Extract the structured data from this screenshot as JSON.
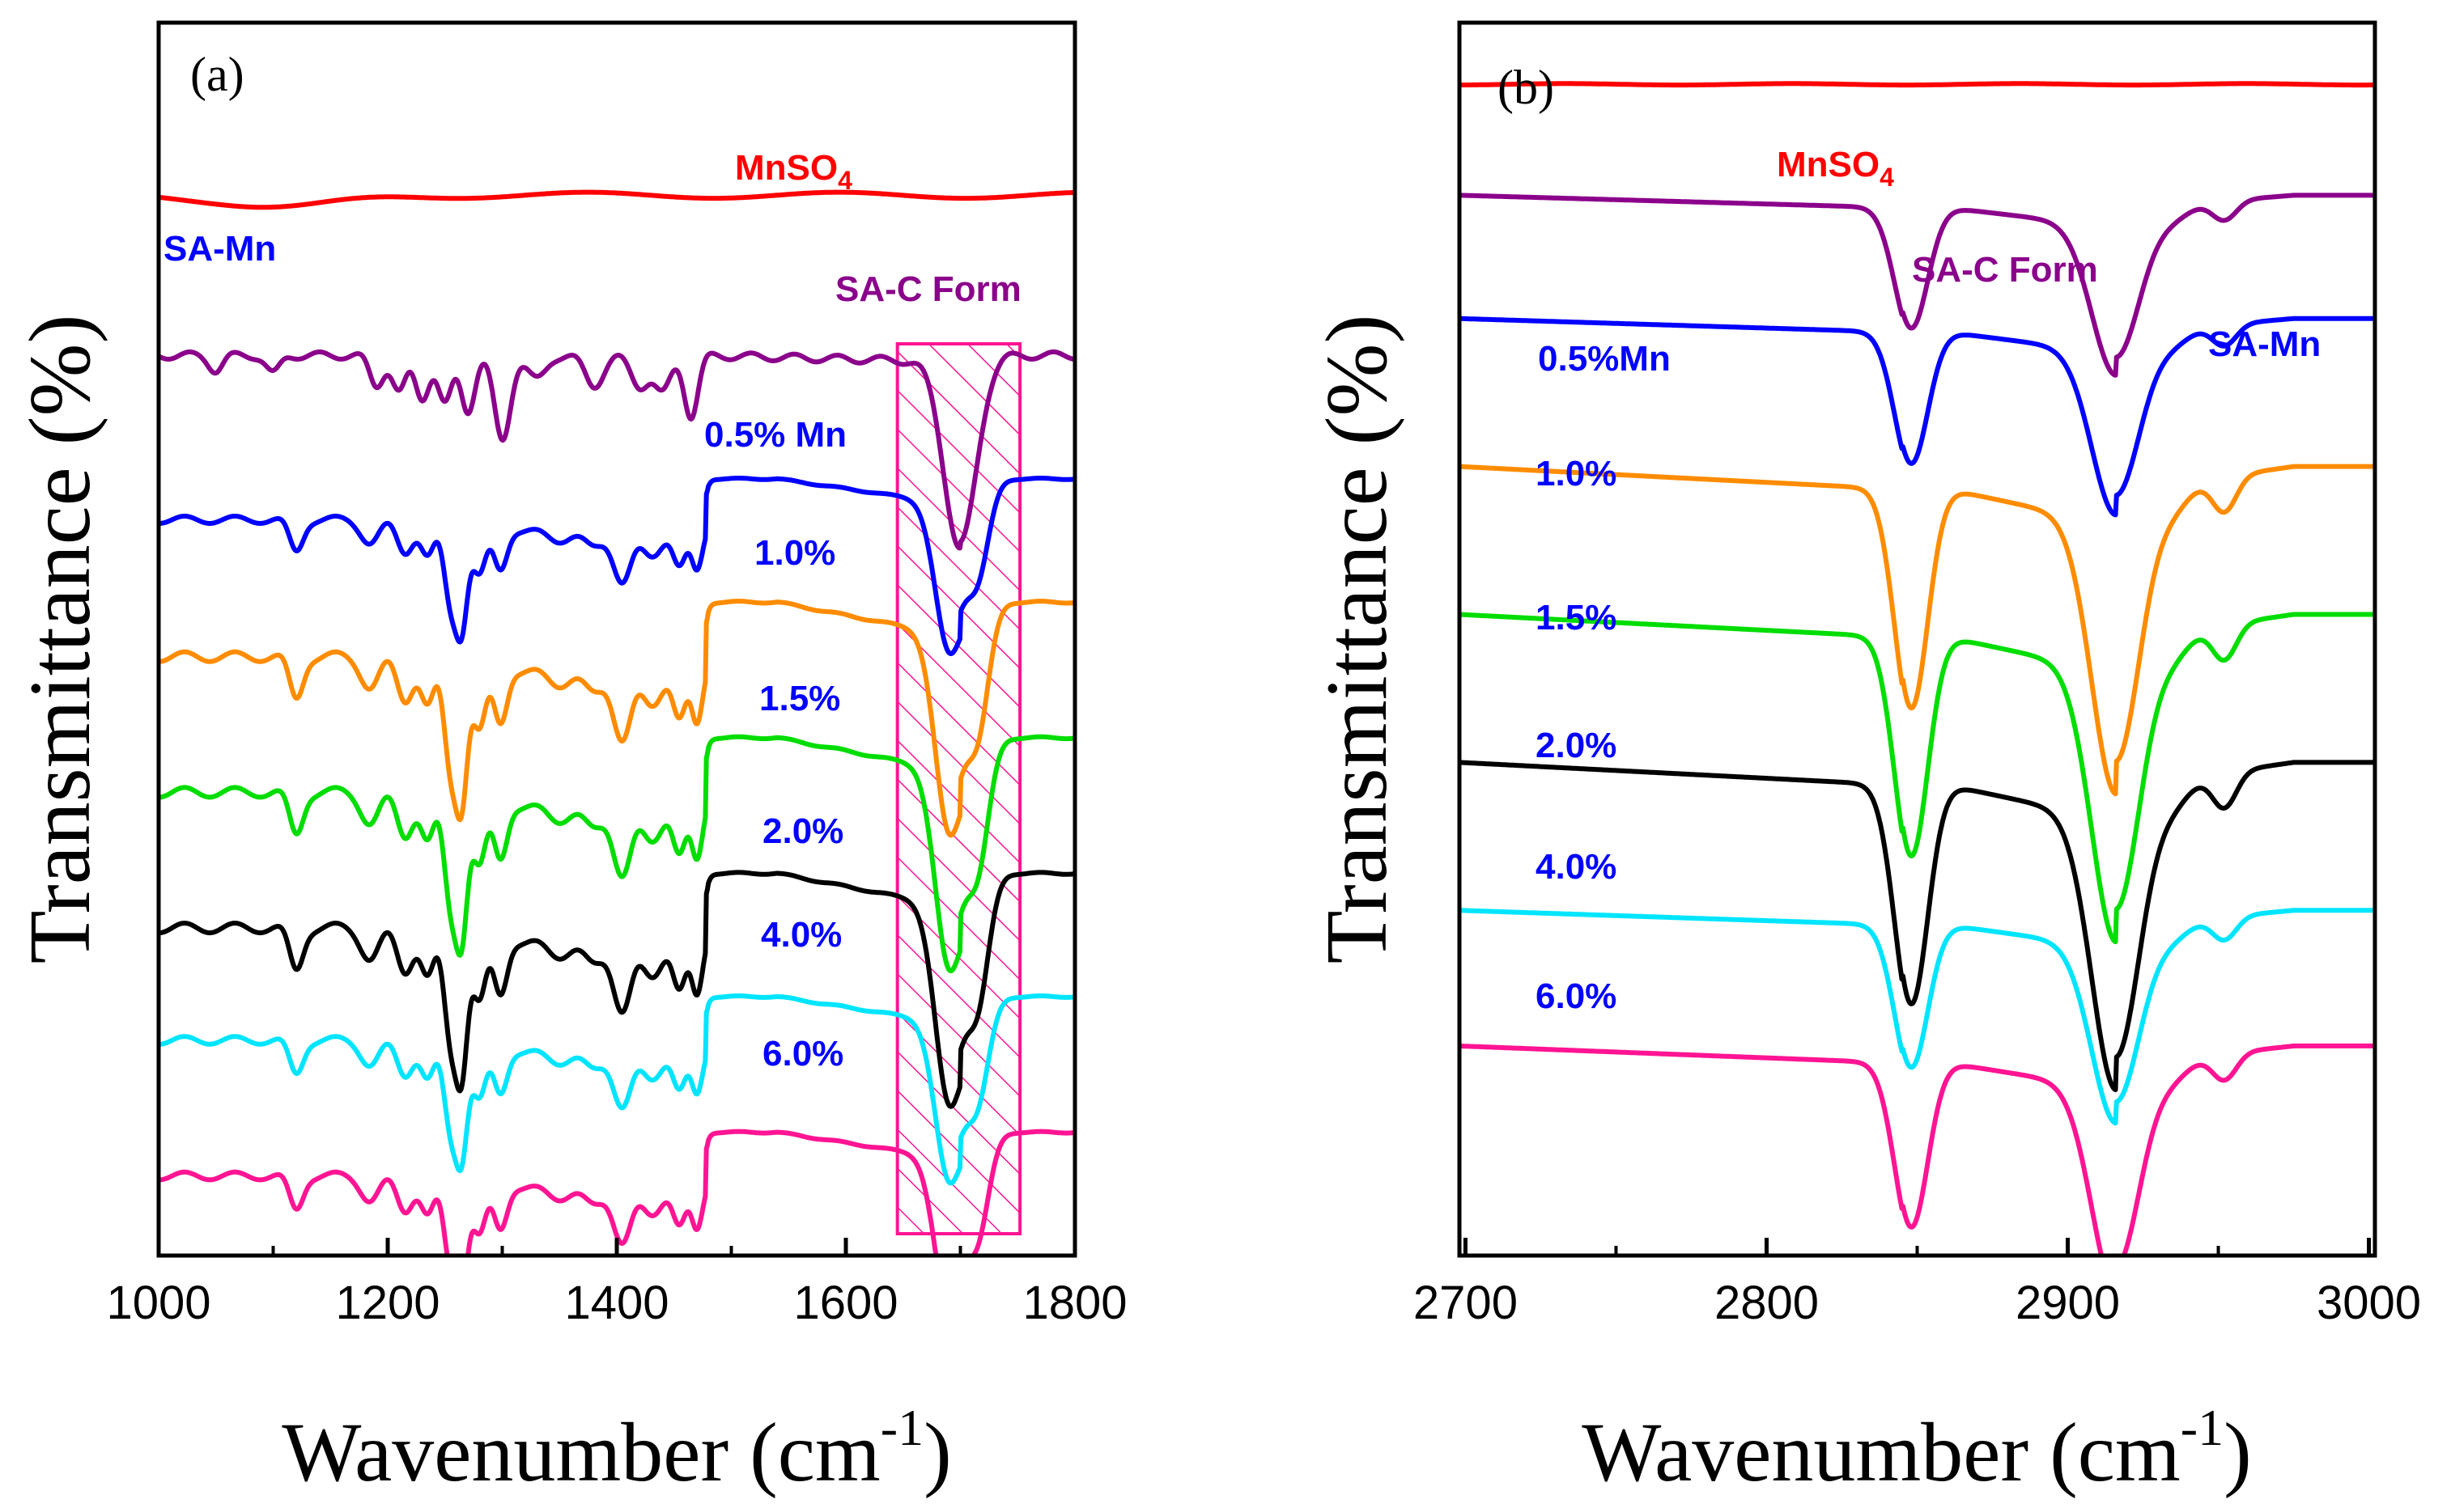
{
  "chart_data": [
    {
      "panel": "(a)",
      "type": "line",
      "xlabel": "Wavenumber (cm",
      "xlabel_sup": "-1",
      "xlabel_close": ")",
      "ylabel": "Transmittance (%)",
      "xlim": [
        1000,
        1800
      ],
      "xticks": [
        "1000",
        "1200",
        "1400",
        "1600",
        "1800"
      ],
      "xtick_values": [
        1000,
        1200,
        1400,
        1600,
        1800
      ],
      "highlight_region": [
        1645,
        1752
      ],
      "annotation": "SA-Mn",
      "series": [
        {
          "name": "MnSO",
          "sub": "4",
          "color": "#ff0000",
          "offset": 0.86,
          "profile": "mnso4"
        },
        {
          "name": "SA-C Form",
          "color": "#8b008b",
          "offset": 0.73,
          "profile": "sac"
        },
        {
          "name": "0.5% Mn",
          "color": "#0000ff",
          "offset": 0.63,
          "profile": "mn",
          "scale": 0.75
        },
        {
          "name": "1.0%",
          "color": "#ff8c00",
          "offset": 0.53,
          "profile": "mn",
          "scale": 1.0
        },
        {
          "name": "1.5%",
          "color": "#00dd00",
          "offset": 0.42,
          "profile": "mn",
          "scale": 1.0
        },
        {
          "name": "2.0%",
          "color": "#000000",
          "offset": 0.31,
          "profile": "mn",
          "scale": 1.0
        },
        {
          "name": "4.0%",
          "color": "#00e5ff",
          "offset": 0.21,
          "profile": "mn",
          "scale": 0.8
        },
        {
          "name": "6.0%",
          "color": "#ff1493",
          "offset": 0.1,
          "profile": "mn",
          "scale": 0.8
        }
      ]
    },
    {
      "panel": "(b)",
      "type": "line",
      "xlabel": "Wavenumber (cm",
      "xlabel_sup": "-1",
      "xlabel_close": ")",
      "ylabel": "Transmittance (%)",
      "xlim": [
        2698,
        3002
      ],
      "xticks": [
        "2700",
        "2800",
        "2900",
        "3000"
      ],
      "xtick_values": [
        2700,
        2800,
        2900,
        3000
      ],
      "annotation": "SA-Mn",
      "series": [
        {
          "name": "MnSO",
          "sub": "4",
          "color": "#ff0000",
          "offset": 0.95,
          "profile": "flat"
        },
        {
          "name": "SA-C Form",
          "color": "#8b008b",
          "offset": 0.86,
          "scale": 0.55
        },
        {
          "name": "0.5%Mn",
          "color": "#0000ff",
          "offset": 0.76,
          "scale": 0.6
        },
        {
          "name": "1.0%",
          "color": "#ff8c00",
          "offset": 0.64,
          "scale": 1.0
        },
        {
          "name": "1.5%",
          "color": "#00dd00",
          "offset": 0.52,
          "scale": 1.0
        },
        {
          "name": "2.0%",
          "color": "#000000",
          "offset": 0.4,
          "scale": 1.0
        },
        {
          "name": "4.0%",
          "color": "#00e5ff",
          "offset": 0.28,
          "scale": 0.65
        },
        {
          "name": "6.0%",
          "color": "#ff1493",
          "offset": 0.17,
          "scale": 0.75
        }
      ]
    }
  ]
}
